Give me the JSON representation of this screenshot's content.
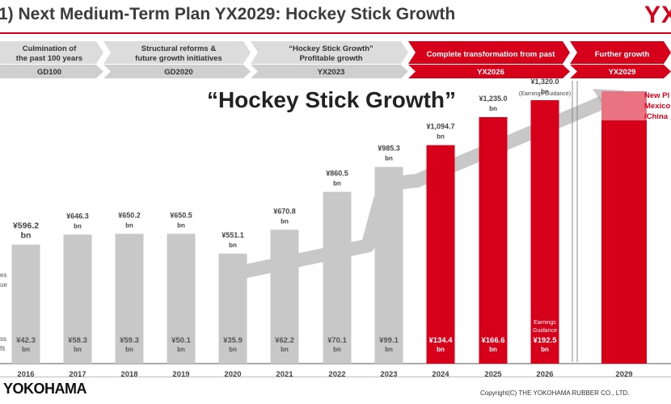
{
  "header": {
    "title": "1) Next Medium-Term Plan YX2029: Hockey Stick Growth",
    "logo_text": "YX"
  },
  "phases": [
    {
      "line1": "Culmination of",
      "line2": "the past 100 years",
      "label": "GD100",
      "highlight": false
    },
    {
      "line1": "Structural reforms &",
      "line2": "future growth initiatives",
      "label": "GD2020",
      "highlight": false
    },
    {
      "line1": "“Hockey Stick Growth”",
      "line2": "Profitable growth",
      "label": "YX2023",
      "highlight": false
    },
    {
      "line1": "Complete transformation from past",
      "line2": "",
      "label": "YX2026",
      "highlight": true
    },
    {
      "line1": "Further growth",
      "line2": "",
      "label": "YX2029",
      "highlight": true
    }
  ],
  "headline": "“Hockey Stick Growth”",
  "row_labels": {
    "revenue": [
      "es",
      "ue"
    ],
    "profit": [
      "ss",
      "fit"
    ]
  },
  "guidance_label": "(Earnings Guidance)",
  "profit_guidance_label": [
    "Earnings",
    "Guidance"
  ],
  "new_plant_note": [
    "New Pl",
    "Mexico",
    "/China"
  ],
  "colors": {
    "actual": "#c8c8c8",
    "plan": "#d7001a",
    "accent": "#d7001a",
    "phase_gray": "#dcdcdc",
    "phase_gray_dark": "#cfcfcf"
  },
  "chart_data": {
    "type": "bar",
    "categories": [
      "2016",
      "2017",
      "2018",
      "2019",
      "2020",
      "2021",
      "2022",
      "2023",
      "2024",
      "2025",
      "2026",
      "2029"
    ],
    "series": [
      {
        "values": [
          596.2,
          646.3,
          650.2,
          650.5,
          551.1,
          670.8,
          860.5,
          985.3,
          1094.7,
          1235.0,
          1320.0,
          null
        ]
      },
      {
        "values": [
          42.3,
          58.3,
          59.3,
          50.1,
          35.9,
          62.2,
          70.1,
          99.1,
          134.4,
          166.6,
          192.5,
          null
        ]
      }
    ],
    "value_labels": [
      "¥596.2",
      "¥646.3",
      "¥650.2",
      "¥650.5",
      "¥551.1",
      "¥670.8",
      "¥860.5",
      "¥985.3",
      "¥1,094.7",
      "¥1,235.0",
      "¥1,320.0",
      ""
    ],
    "profit_labels": [
      "¥42.3",
      "¥58.3",
      "¥59.3",
      "¥50.1",
      "¥35.9",
      "¥62.2",
      "¥70.1",
      "¥99.1",
      "¥134.4",
      "¥166.6",
      "¥192.5",
      ""
    ],
    "unit": "bn",
    "plan_from_index": 8
  },
  "footer": {
    "brand": "YOKOHAMA",
    "copyright": "Copyright(C) THE YOKOHAMA RUBBER CO., LTD."
  }
}
